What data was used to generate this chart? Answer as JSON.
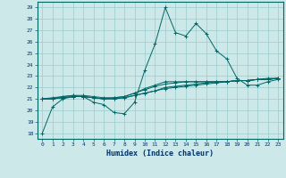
{
  "xlabel": "Humidex (Indice chaleur)",
  "ylabel": "",
  "xlim": [
    -0.5,
    23.5
  ],
  "ylim": [
    17.5,
    29.5
  ],
  "xticks": [
    0,
    1,
    2,
    3,
    4,
    5,
    6,
    7,
    8,
    9,
    10,
    11,
    12,
    13,
    14,
    15,
    16,
    17,
    18,
    19,
    20,
    21,
    22,
    23
  ],
  "yticks": [
    18,
    19,
    20,
    21,
    22,
    23,
    24,
    25,
    26,
    27,
    28,
    29
  ],
  "background_color": "#cce8e8",
  "grid_color": "#99cccc",
  "line_color": "#006666",
  "lines": [
    [
      18.0,
      20.3,
      21.0,
      21.2,
      21.2,
      20.7,
      20.5,
      19.8,
      19.7,
      20.7,
      23.5,
      25.8,
      29.0,
      26.8,
      26.5,
      27.6,
      26.7,
      25.2,
      24.5,
      22.8,
      22.2,
      22.2,
      22.5,
      22.7
    ],
    [
      21.0,
      21.0,
      21.2,
      21.3,
      21.2,
      21.1,
      21.0,
      21.0,
      21.1,
      21.3,
      21.5,
      21.7,
      21.9,
      22.0,
      22.1,
      22.2,
      22.3,
      22.4,
      22.5,
      22.6,
      22.6,
      22.7,
      22.7,
      22.8
    ],
    [
      21.0,
      21.0,
      21.1,
      21.2,
      21.2,
      21.1,
      21.0,
      21.0,
      21.1,
      21.3,
      21.5,
      21.7,
      22.0,
      22.1,
      22.2,
      22.3,
      22.4,
      22.5,
      22.5,
      22.6,
      22.6,
      22.7,
      22.7,
      22.8
    ],
    [
      21.0,
      21.0,
      21.1,
      21.2,
      21.2,
      21.1,
      21.0,
      21.1,
      21.2,
      21.5,
      21.8,
      22.1,
      22.3,
      22.4,
      22.5,
      22.5,
      22.5,
      22.5,
      22.5,
      22.6,
      22.6,
      22.7,
      22.7,
      22.8
    ],
    [
      21.0,
      21.1,
      21.2,
      21.3,
      21.3,
      21.2,
      21.1,
      21.1,
      21.2,
      21.5,
      21.9,
      22.2,
      22.5,
      22.5,
      22.5,
      22.5,
      22.5,
      22.5,
      22.5,
      22.6,
      22.6,
      22.7,
      22.8,
      22.8
    ]
  ]
}
